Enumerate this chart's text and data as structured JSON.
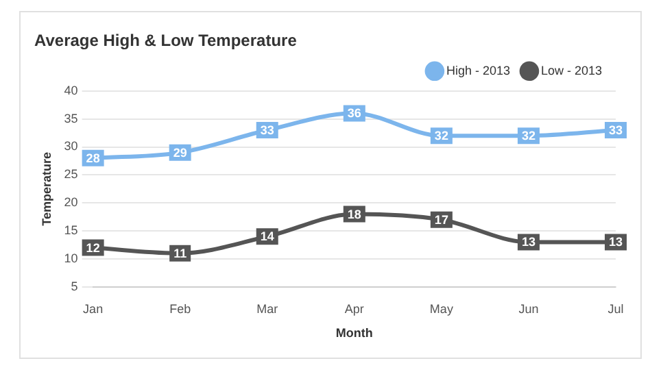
{
  "chart_data": {
    "type": "line",
    "title": "Average High & Low Temperature",
    "xlabel": "Month",
    "ylabel": "Temperature",
    "categories": [
      "Jan",
      "Feb",
      "Mar",
      "Apr",
      "May",
      "Jun",
      "Jul"
    ],
    "series": [
      {
        "name": "High - 2013",
        "color": "#7cb5ec",
        "values": [
          28,
          29,
          33,
          36,
          32,
          32,
          33
        ]
      },
      {
        "name": "Low - 2013",
        "color": "#555555",
        "values": [
          12,
          11,
          14,
          18,
          17,
          13,
          13
        ]
      }
    ],
    "ylim": [
      5,
      40
    ],
    "yticks": [
      5,
      10,
      15,
      20,
      25,
      30,
      35,
      40
    ],
    "grid": "y",
    "legend": "top right",
    "marker": "square",
    "line_style": "solid",
    "data_labels": true
  }
}
